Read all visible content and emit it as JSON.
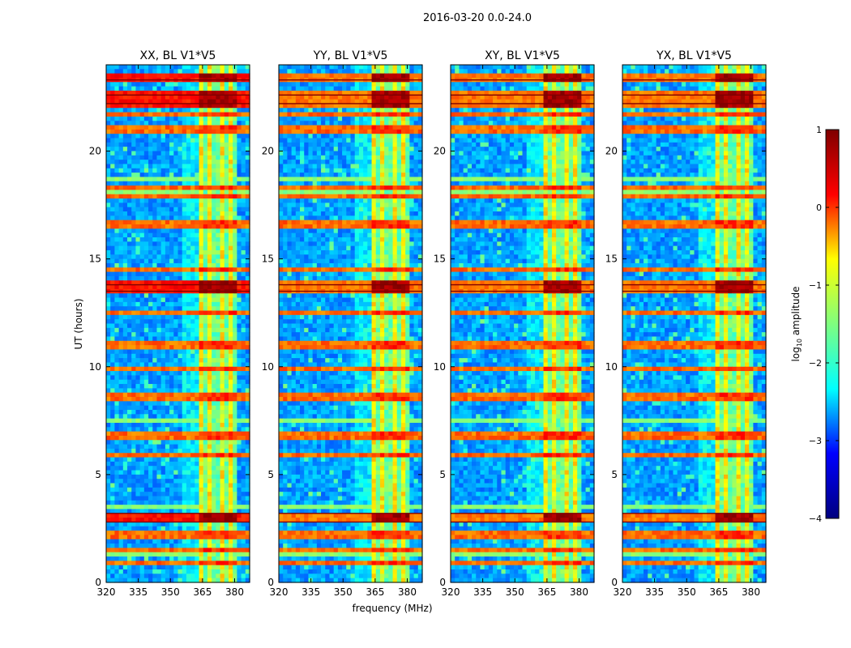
{
  "figure": {
    "suptitle": "2016-03-20 0.0-24.0",
    "xlabel": "frequency (MHz)",
    "ylabel": "UT (hours)"
  },
  "colorbar": {
    "label_prefix": "log",
    "label_sub": "10",
    "label_suffix": " amplitude",
    "range": [
      -4,
      1
    ],
    "ticks": [
      1,
      0,
      -1,
      -2,
      -3,
      -4
    ],
    "tick_labels": [
      "1",
      "0",
      "−1",
      "−2",
      "−3",
      "−4"
    ],
    "colormap": "jet",
    "stops": [
      "#00007f",
      "#0000ff",
      "#00ffff",
      "#7fff7f",
      "#ffff00",
      "#ff0000",
      "#7f0000"
    ]
  },
  "chart_data": [
    {
      "type": "heatmap",
      "title": "XX, BL V1*V5",
      "xlabel": "frequency (MHz)",
      "ylabel": "UT (hours)",
      "xlim": [
        320,
        387
      ],
      "ylim": [
        0,
        24
      ],
      "xticks": [
        320,
        335,
        350,
        365,
        380
      ],
      "yticks": [
        0,
        5,
        10,
        15,
        20
      ],
      "rfi_bright_hours": [
        2.8,
        3.2,
        13.5,
        13.8,
        22.2,
        22.6,
        23.3
      ],
      "signal_band_mhz": [
        363,
        382
      ]
    },
    {
      "type": "heatmap",
      "title": "YY, BL V1*V5",
      "xlabel": "frequency (MHz)",
      "ylabel": "UT (hours)",
      "xlim": [
        320,
        387
      ],
      "ylim": [
        0,
        24
      ],
      "xticks": [
        320,
        335,
        350,
        365,
        380
      ],
      "yticks": [
        0,
        5,
        10,
        15,
        20
      ],
      "rfi_bright_hours": [
        2.8,
        3.2,
        13.5,
        13.8,
        22.2,
        22.6,
        23.3
      ],
      "signal_band_mhz": [
        363,
        382
      ]
    },
    {
      "type": "heatmap",
      "title": "XY, BL V1*V5",
      "xlabel": "frequency (MHz)",
      "ylabel": "UT (hours)",
      "xlim": [
        320,
        387
      ],
      "ylim": [
        0,
        24
      ],
      "xticks": [
        320,
        335,
        350,
        365,
        380
      ],
      "yticks": [
        0,
        5,
        10,
        15,
        20
      ],
      "rfi_bright_hours": [
        2.8,
        3.2,
        13.5,
        13.8,
        22.2,
        22.6,
        23.3
      ],
      "signal_band_mhz": [
        363,
        382
      ]
    },
    {
      "type": "heatmap",
      "title": "YX, BL V1*V5",
      "xlabel": "frequency (MHz)",
      "ylabel": "UT (hours)",
      "xlim": [
        320,
        387
      ],
      "ylim": [
        0,
        24
      ],
      "xticks": [
        320,
        335,
        350,
        365,
        380
      ],
      "yticks": [
        0,
        5,
        10,
        15,
        20
      ],
      "rfi_bright_hours": [
        2.8,
        3.2,
        13.5,
        13.8,
        22.2,
        22.6,
        23.3
      ],
      "signal_band_mhz": [
        363,
        382
      ]
    }
  ]
}
